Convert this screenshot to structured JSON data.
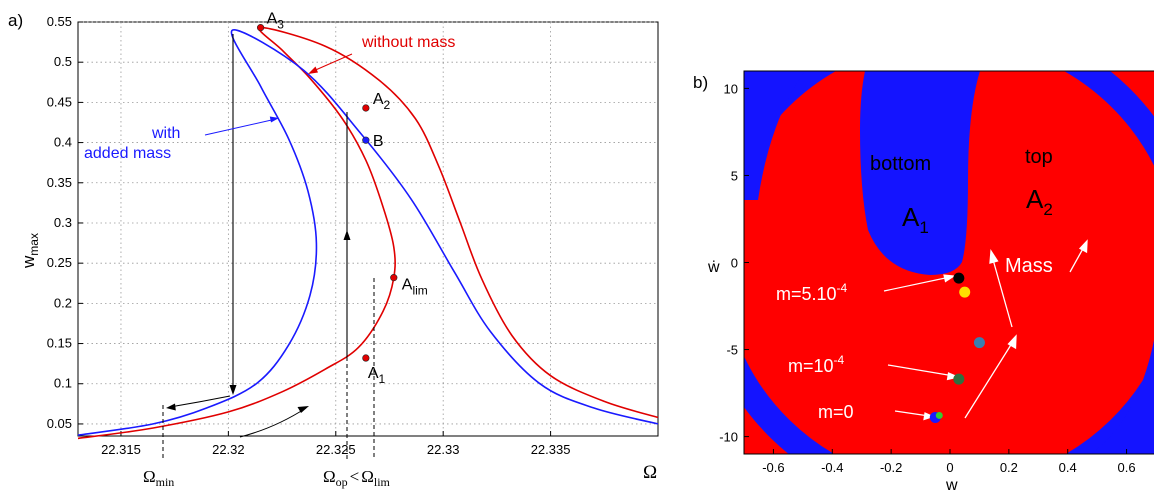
{
  "chart_data": [
    {
      "panel_label": "a)",
      "type": "line",
      "xlabel": "Ω",
      "ylabel": "w_max",
      "xlim": [
        22.313,
        22.34
      ],
      "ylim": [
        0.035,
        0.55
      ],
      "xticks": [
        "22.315",
        "22.32",
        "22.325",
        "22.33",
        "22.335"
      ],
      "yticks": [
        "0.05",
        "0.1",
        "0.15",
        "0.2",
        "0.25",
        "0.3",
        "0.35",
        "0.4",
        "0.45",
        "0.5",
        "0.55"
      ],
      "grid": true,
      "series": [
        {
          "name": "without mass",
          "color": "#e00000",
          "points": [
            [
              22.313,
              0.032
            ],
            [
              22.3165,
              0.045
            ],
            [
              22.32,
              0.065
            ],
            [
              22.3225,
              0.09
            ],
            [
              22.3245,
              0.118
            ],
            [
              22.32605,
              0.145
            ],
            [
              22.3272,
              0.19
            ],
            [
              22.3277,
              0.232
            ],
            [
              22.3277,
              0.27
            ],
            [
              22.3272,
              0.32
            ],
            [
              22.3264,
              0.378
            ],
            [
              22.3253,
              0.43
            ],
            [
              22.3238,
              0.48
            ],
            [
              22.3225,
              0.515
            ],
            [
              22.3215,
              0.543
            ],
            [
              22.3245,
              0.52
            ],
            [
              22.327,
              0.478
            ],
            [
              22.3287,
              0.43
            ],
            [
              22.3298,
              0.37
            ],
            [
              22.3308,
              0.3
            ],
            [
              22.3318,
              0.23
            ],
            [
              22.3332,
              0.16
            ],
            [
              22.335,
              0.11
            ],
            [
              22.3375,
              0.078
            ],
            [
              22.34,
              0.058
            ]
          ]
        },
        {
          "name": "with added mass",
          "color": "#1a1aff",
          "points": [
            [
              22.313,
              0.036
            ],
            [
              22.3165,
              0.05
            ],
            [
              22.319,
              0.07
            ],
            [
              22.3213,
              0.1
            ],
            [
              22.3228,
              0.148
            ],
            [
              22.3238,
              0.21
            ],
            [
              22.3241,
              0.275
            ],
            [
              22.3237,
              0.34
            ],
            [
              22.3228,
              0.405
            ],
            [
              22.3215,
              0.47
            ],
            [
              22.3202,
              0.54
            ],
            [
              22.3235,
              0.49
            ],
            [
              22.3262,
              0.41
            ],
            [
              22.3285,
              0.33
            ],
            [
              22.3305,
              0.24
            ],
            [
              22.3322,
              0.165
            ],
            [
              22.3345,
              0.1
            ],
            [
              22.337,
              0.07
            ],
            [
              22.34,
              0.05
            ]
          ]
        }
      ],
      "markers": [
        {
          "label": "A",
          "sub": "3",
          "x": 22.3215,
          "y": 0.543,
          "color": "#e00000"
        },
        {
          "label": "A",
          "sub": "2",
          "x": 22.3264,
          "y": 0.443,
          "color": "#e00000"
        },
        {
          "label": "B",
          "sub": "",
          "x": 22.3264,
          "y": 0.403,
          "color": "#1a1aff"
        },
        {
          "label": "A",
          "sub": "lim",
          "x": 22.3277,
          "y": 0.232,
          "color": "#e00000"
        },
        {
          "label": "A",
          "sub": "1",
          "x": 22.3264,
          "y": 0.132,
          "color": "#e00000"
        }
      ],
      "annotations": {
        "without_mass": "without mass",
        "with_line1": "with",
        "with_line2": "added mass",
        "omega_min": "Ω",
        "omega_min_sub": "min",
        "omega_op": "Ω",
        "omega_op_sub": "op",
        "lt": "<",
        "omega_lim": "Ω",
        "omega_lim_sub": "lim"
      }
    },
    {
      "panel_label": "b)",
      "type": "heatmap",
      "xlabel": "w",
      "ylabel": "ẇ",
      "xlim": [
        -0.7,
        0.7
      ],
      "ylim": [
        -11,
        11
      ],
      "xticks": [
        "-0.6",
        "-0.4",
        "-0.2",
        "0",
        "0.2",
        "0.4",
        "0.6"
      ],
      "yticks": [
        "10",
        "5",
        "0",
        "-5",
        "-10"
      ],
      "regions": [
        {
          "name": "bottom",
          "sub_label": "A",
          "sub": "1",
          "color": "#1414ff"
        },
        {
          "name": "top",
          "sub_label": "A",
          "sub": "2",
          "color": "#ff0000"
        }
      ],
      "points": [
        {
          "label": "m=5.10",
          "exp": "-4",
          "x": 0.03,
          "y": -0.9,
          "color": "#000000"
        },
        {
          "label": "",
          "x": 0.05,
          "y": -1.7,
          "color": "#ffe000"
        },
        {
          "label": "",
          "x": 0.1,
          "y": -4.6,
          "color": "#3a7fb0"
        },
        {
          "label": "m=10",
          "exp": "-4",
          "x": 0.03,
          "y": -6.7,
          "color": "#2f7040"
        },
        {
          "label": "m=0",
          "exp": "",
          "x": -0.05,
          "y": -8.9,
          "color": "#1a1aff"
        }
      ],
      "arrow_label": "Mass"
    }
  ]
}
